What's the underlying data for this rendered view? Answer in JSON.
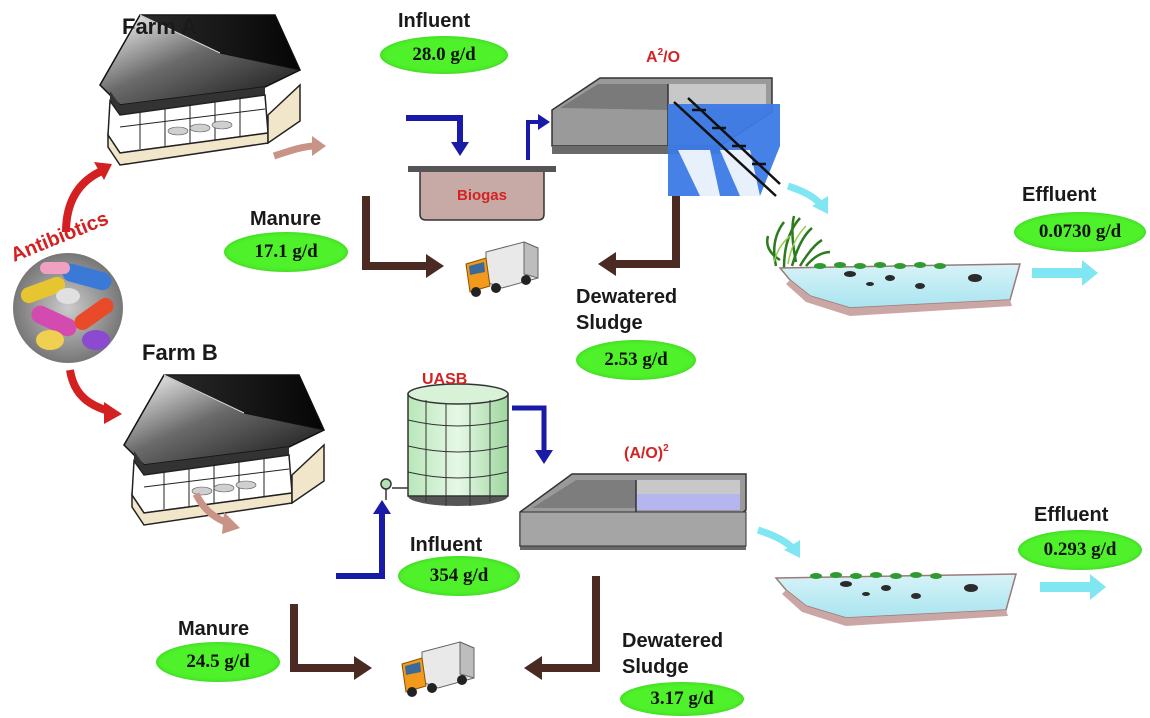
{
  "antibiotics": {
    "label": "Antibiotics"
  },
  "farm_a": {
    "title": "Farm A",
    "influent": {
      "label": "Influent",
      "value": "28.0  g/d"
    },
    "manure": {
      "label": "Manure",
      "value": "17.1  g/d"
    },
    "biogas": {
      "label": "Biogas"
    },
    "process": {
      "name": "A",
      "sup": "2",
      "name_suffix": "/O"
    },
    "sludge": {
      "label_line1": "Dewatered",
      "label_line2": "Sludge",
      "value": "2.53  g/d"
    },
    "effluent": {
      "label": "Effluent",
      "value": "0.0730 g/d"
    }
  },
  "farm_b": {
    "title": "Farm B",
    "influent": {
      "label": "Influent",
      "value": "354  g/d"
    },
    "manure": {
      "label": "Manure",
      "value": "24.5  g/d"
    },
    "uasb": {
      "label": "UASB"
    },
    "process": {
      "name": "(A/O)",
      "sup": "2"
    },
    "sludge": {
      "label_line1": "Dewatered",
      "label_line2": "Sludge",
      "value": "3.17  g/d"
    },
    "effluent": {
      "label": "Effluent",
      "value": "0.293  g/d"
    }
  },
  "colors": {
    "pill_green": "#4ef12a",
    "arrow_red": "#d32020",
    "arrow_blue": "#1a1aa8",
    "arrow_brown": "#4a2a22",
    "arrow_pink": "#c99387",
    "arrow_cyan": "#7fe6f2",
    "text_red": "#d42323"
  }
}
